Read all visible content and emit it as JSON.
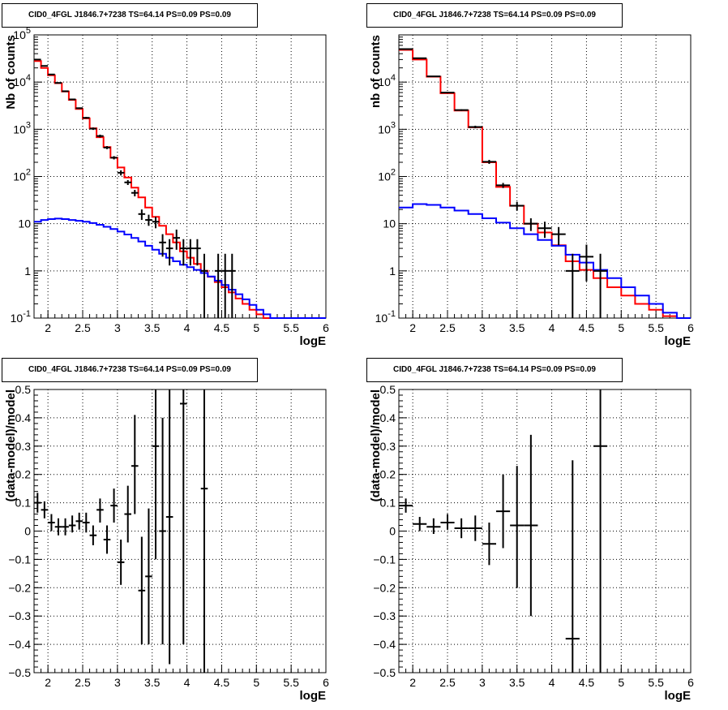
{
  "chart_data": [
    {
      "type": "line",
      "title": "CID0_4FGL J1846.7+7238 TS=64.14 PS=0.09 PS=0.09",
      "xlabel": "logE",
      "ylabel": "Nb of counts",
      "xlim": [
        1.8,
        6
      ],
      "ylim": [
        0.1,
        100000
      ],
      "yscale": "log",
      "grid": true,
      "x_ticks": [
        "2",
        "2.5",
        "3",
        "3.5",
        "4",
        "4.5",
        "5",
        "5.5",
        "6"
      ],
      "y_ticks": [
        "10^{-1}",
        "1",
        "10",
        "10^{2}",
        "10^{3}",
        "10^{4}",
        "10^{5}"
      ],
      "bin_edges": [
        1.8,
        1.9,
        2.0,
        2.1,
        2.2,
        2.3,
        2.4,
        2.5,
        2.6,
        2.7,
        2.8,
        2.9,
        3.0,
        3.1,
        3.2,
        3.3,
        3.4,
        3.5,
        3.6,
        3.7,
        3.8,
        3.9,
        4.0,
        4.1,
        4.2,
        4.3,
        4.4,
        4.5,
        4.6,
        4.7,
        4.8,
        4.9,
        5.0,
        5.1,
        5.2,
        5.3,
        5.4,
        5.5,
        5.6,
        5.7,
        5.8,
        5.9,
        6.0
      ],
      "series": [
        {
          "color": "#ff0000",
          "style": "step",
          "values": [
            28000,
            20000,
            14000,
            9500,
            6300,
            4200,
            2700,
            1700,
            1050,
            680,
            420,
            250,
            155,
            95,
            58,
            36,
            22,
            14,
            9,
            6,
            4,
            2.6,
            1.9,
            1.4,
            1.0,
            0.75,
            0.58,
            0.45,
            0.35,
            0.26,
            0.2,
            0.15,
            0.12,
            0.1,
            0.1,
            0.1,
            0.1,
            0.1,
            0.1,
            0.1,
            0.1,
            0.1
          ]
        },
        {
          "color": "#0000ff",
          "style": "step",
          "values": [
            11,
            12,
            12.5,
            12.8,
            12.5,
            12,
            11.5,
            11,
            10.3,
            9.5,
            8.6,
            7.7,
            6.8,
            5.9,
            5,
            4.2,
            3.4,
            2.8,
            2.3,
            1.9,
            1.6,
            1.35,
            1.2,
            1.05,
            0.9,
            0.76,
            0.62,
            0.5,
            0.4,
            0.32,
            0.25,
            0.19,
            0.15,
            0.12,
            0.1,
            0.1,
            0.1,
            0.1,
            0.1,
            0.1,
            0.1,
            0.1
          ]
        },
        {
          "color": "#000000",
          "style": "errorbar",
          "points": [
            {
              "x": 1.85,
              "y": 30000,
              "lo": 29500,
              "hi": 30500
            },
            {
              "x": 1.95,
              "y": 22000,
              "lo": 21500,
              "hi": 22500
            },
            {
              "x": 2.05,
              "y": 14500,
              "lo": 14100,
              "hi": 14900
            },
            {
              "x": 2.15,
              "y": 9600,
              "lo": 9300,
              "hi": 9900
            },
            {
              "x": 2.25,
              "y": 6400,
              "lo": 6200,
              "hi": 6600
            },
            {
              "x": 2.35,
              "y": 4300,
              "lo": 4150,
              "hi": 4450
            },
            {
              "x": 2.45,
              "y": 2800,
              "lo": 2700,
              "hi": 2900
            },
            {
              "x": 2.55,
              "y": 1750,
              "lo": 1670,
              "hi": 1830
            },
            {
              "x": 2.65,
              "y": 1030,
              "lo": 970,
              "hi": 1090
            },
            {
              "x": 2.75,
              "y": 720,
              "lo": 670,
              "hi": 770
            },
            {
              "x": 2.85,
              "y": 410,
              "lo": 380,
              "hi": 440
            },
            {
              "x": 2.95,
              "y": 250,
              "lo": 230,
              "hi": 270
            },
            {
              "x": 3.05,
              "y": 120,
              "lo": 105,
              "hi": 135
            },
            {
              "x": 3.15,
              "y": 75,
              "lo": 66,
              "hi": 84
            },
            {
              "x": 3.25,
              "y": 45,
              "lo": 38,
              "hi": 52
            },
            {
              "x": 3.35,
              "y": 16,
              "lo": 12,
              "hi": 20
            },
            {
              "x": 3.45,
              "y": 12,
              "lo": 9,
              "hi": 15.5
            },
            {
              "x": 3.55,
              "y": 11,
              "lo": 8,
              "hi": 14
            },
            {
              "x": 3.65,
              "y": 4,
              "lo": 2,
              "hi": 6
            },
            {
              "x": 3.75,
              "y": 3,
              "lo": 1.3,
              "hi": 4.7
            },
            {
              "x": 3.85,
              "y": 5,
              "lo": 2.8,
              "hi": 7.5
            },
            {
              "x": 3.95,
              "y": 3,
              "lo": 1.3,
              "hi": 4.7
            },
            {
              "x": 4.05,
              "y": 3,
              "lo": 1.3,
              "hi": 4.7
            },
            {
              "x": 4.15,
              "y": 3,
              "lo": 1.3,
              "hi": 4.7
            },
            {
              "x": 4.25,
              "y": 1,
              "lo": 0.1,
              "hi": 2.3
            },
            {
              "x": 4.45,
              "y": 1,
              "lo": 0.1,
              "hi": 2.3
            },
            {
              "x": 4.55,
              "y": 1,
              "lo": 0.1,
              "hi": 2.3
            },
            {
              "x": 4.65,
              "y": 1,
              "lo": 0.1,
              "hi": 2.3
            }
          ]
        }
      ]
    },
    {
      "type": "line",
      "title": "CID0_4FGL J1846.7+7238 TS=64.14 PS=0.09 PS=0.09",
      "xlabel": "logE",
      "ylabel": "nb of counts",
      "xlim": [
        1.8,
        6
      ],
      "ylim": [
        0.1,
        100000
      ],
      "yscale": "log",
      "grid": true,
      "x_ticks": [
        "2",
        "2.5",
        "3",
        "3.5",
        "4",
        "4.5",
        "5",
        "5.5",
        "6"
      ],
      "y_ticks": [
        "10^{-1}",
        "1",
        "10",
        "10^{2}",
        "10^{3}",
        "10^{4}"
      ],
      "bin_edges": [
        1.8,
        2.0,
        2.2,
        2.4,
        2.6,
        2.8,
        3.0,
        3.2,
        3.4,
        3.6,
        3.8,
        4.0,
        4.2,
        4.4,
        4.6,
        4.8,
        5.0,
        5.2,
        5.4,
        5.6,
        5.8,
        6.0
      ],
      "series": [
        {
          "color": "#ff0000",
          "style": "step",
          "values": [
            48000,
            30000,
            13000,
            5800,
            2500,
            1100,
            200,
            60,
            24,
            10,
            6.5,
            3.5,
            1.6,
            1.05,
            0.7,
            0.45,
            0.3,
            0.2,
            0.15,
            0.11,
            0.1
          ]
        },
        {
          "color": "#0000ff",
          "style": "step",
          "values": [
            22,
            26,
            25,
            22,
            19,
            16,
            13,
            10.5,
            8,
            6,
            4.5,
            3.4,
            2.2,
            1.5,
            1.05,
            0.7,
            0.45,
            0.3,
            0.2,
            0.13,
            0.1
          ]
        },
        {
          "color": "#000000",
          "style": "errorbar",
          "points": [
            {
              "x": 1.9,
              "y": 50000,
              "lo": 49000,
              "hi": 51000
            },
            {
              "x": 2.1,
              "y": 32000,
              "lo": 31400,
              "hi": 32600
            },
            {
              "x": 2.3,
              "y": 13200,
              "lo": 12900,
              "hi": 13500
            },
            {
              "x": 2.5,
              "y": 6000,
              "lo": 5800,
              "hi": 6200
            },
            {
              "x": 2.7,
              "y": 2550,
              "lo": 2450,
              "hi": 2650
            },
            {
              "x": 2.9,
              "y": 1120,
              "lo": 1050,
              "hi": 1190
            },
            {
              "x": 3.1,
              "y": 205,
              "lo": 185,
              "hi": 225
            },
            {
              "x": 3.3,
              "y": 65,
              "lo": 57,
              "hi": 73
            },
            {
              "x": 3.5,
              "y": 24,
              "lo": 19,
              "hi": 29
            },
            {
              "x": 3.7,
              "y": 10,
              "lo": 7,
              "hi": 13
            },
            {
              "x": 3.9,
              "y": 8,
              "lo": 5,
              "hi": 11
            },
            {
              "x": 4.1,
              "y": 6,
              "lo": 3.5,
              "hi": 8.5
            },
            {
              "x": 4.3,
              "y": 1,
              "lo": 0.1,
              "hi": 2.3
            },
            {
              "x": 4.5,
              "y": 2,
              "lo": 0.6,
              "hi": 3.6
            },
            {
              "x": 4.7,
              "y": 1,
              "lo": 0.1,
              "hi": 2.3
            }
          ]
        }
      ]
    },
    {
      "type": "scatter",
      "title": "CID0_4FGL J1846.7+7238 TS=64.14 PS=0.09 PS=0.09",
      "xlabel": "logE",
      "ylabel": "(data-model)/model",
      "xlim": [
        1.8,
        6
      ],
      "ylim": [
        -0.5,
        0.5
      ],
      "grid": true,
      "x_ticks": [
        "2",
        "2.5",
        "3",
        "3.5",
        "4",
        "4.5",
        "5",
        "5.5",
        "6"
      ],
      "y_ticks": [
        "−0.5",
        "−0.4",
        "−0.3",
        "−0.2",
        "−0.1",
        "0",
        "0.1",
        "0.2",
        "0.3",
        "0.4",
        "0.5"
      ],
      "series": [
        {
          "color": "#000000",
          "style": "errorbar",
          "points": [
            {
              "x": 1.85,
              "y": 0.1,
              "lo": 0.065,
              "hi": 0.135
            },
            {
              "x": 1.95,
              "y": 0.075,
              "lo": 0.045,
              "hi": 0.105
            },
            {
              "x": 2.05,
              "y": 0.03,
              "lo": 0.0,
              "hi": 0.06
            },
            {
              "x": 2.15,
              "y": 0.015,
              "lo": -0.015,
              "hi": 0.045
            },
            {
              "x": 2.25,
              "y": 0.015,
              "lo": -0.015,
              "hi": 0.045
            },
            {
              "x": 2.35,
              "y": 0.02,
              "lo": -0.005,
              "hi": 0.055
            },
            {
              "x": 2.45,
              "y": 0.035,
              "lo": 0.005,
              "hi": 0.065
            },
            {
              "x": 2.55,
              "y": 0.03,
              "lo": -0.005,
              "hi": 0.065
            },
            {
              "x": 2.65,
              "y": -0.015,
              "lo": -0.05,
              "hi": 0.02
            },
            {
              "x": 2.75,
              "y": 0.075,
              "lo": 0.03,
              "hi": 0.115
            },
            {
              "x": 2.85,
              "y": -0.03,
              "lo": -0.08,
              "hi": 0.02
            },
            {
              "x": 2.95,
              "y": 0.09,
              "lo": 0.03,
              "hi": 0.15
            },
            {
              "x": 3.05,
              "y": -0.11,
              "lo": -0.19,
              "hi": -0.03
            },
            {
              "x": 3.15,
              "y": 0.06,
              "lo": -0.04,
              "hi": 0.16
            },
            {
              "x": 3.25,
              "y": 0.23,
              "lo": 0.06,
              "hi": 0.41
            },
            {
              "x": 3.35,
              "y": -0.21,
              "lo": -0.4,
              "hi": -0.02
            },
            {
              "x": 3.45,
              "y": -0.16,
              "lo": -0.4,
              "hi": 0.08
            },
            {
              "x": 3.55,
              "y": 0.3,
              "lo": -0.1,
              "hi": 0.5
            },
            {
              "x": 3.65,
              "y": 0.0,
              "lo": -0.4,
              "hi": 0.4
            },
            {
              "x": 3.75,
              "y": 0.05,
              "lo": -0.47,
              "hi": 0.5
            },
            {
              "x": 3.95,
              "y": 0.45,
              "lo": -0.4,
              "hi": 0.5
            },
            {
              "x": 4.25,
              "y": 0.15,
              "lo": -0.5,
              "hi": 0.5
            }
          ]
        }
      ]
    },
    {
      "type": "scatter",
      "title": "CID0_4FGL J1846.7+7238 TS=64.14 PS=0.09 PS=0.09",
      "xlabel": "logE",
      "ylabel": "(data-model)/model",
      "xlim": [
        1.8,
        6
      ],
      "ylim": [
        -0.5,
        0.5
      ],
      "grid": true,
      "x_ticks": [
        "2",
        "2.5",
        "3",
        "3.5",
        "4",
        "4.5",
        "5",
        "5.5",
        "6"
      ],
      "y_ticks": [
        "−0.5",
        "−0.4",
        "−0.3",
        "−0.2",
        "−0.1",
        "0",
        "0.1",
        "0.2",
        "0.3",
        "0.4",
        "0.5"
      ],
      "series": [
        {
          "color": "#000000",
          "style": "errorbar",
          "points": [
            {
              "x": 1.9,
              "y": 0.09,
              "lo": 0.065,
              "hi": 0.115
            },
            {
              "x": 2.1,
              "y": 0.025,
              "lo": 0.0,
              "hi": 0.05
            },
            {
              "x": 2.3,
              "y": 0.015,
              "lo": -0.01,
              "hi": 0.045
            },
            {
              "x": 2.5,
              "y": 0.03,
              "lo": 0.005,
              "hi": 0.06
            },
            {
              "x": 2.7,
              "y": 0.01,
              "lo": -0.025,
              "hi": 0.045
            },
            {
              "x": 2.9,
              "y": 0.01,
              "lo": -0.035,
              "hi": 0.055
            },
            {
              "x": 3.1,
              "y": -0.045,
              "lo": -0.12,
              "hi": 0.03
            },
            {
              "x": 3.3,
              "y": 0.07,
              "lo": -0.06,
              "hi": 0.2
            },
            {
              "x": 3.5,
              "y": 0.02,
              "lo": -0.2,
              "hi": 0.23
            },
            {
              "x": 3.7,
              "y": 0.02,
              "lo": -0.3,
              "hi": 0.34
            },
            {
              "x": 4.3,
              "y": -0.38,
              "lo": -0.5,
              "hi": 0.25
            },
            {
              "x": 4.7,
              "y": 0.3,
              "lo": -0.5,
              "hi": 0.5
            }
          ]
        }
      ]
    }
  ]
}
